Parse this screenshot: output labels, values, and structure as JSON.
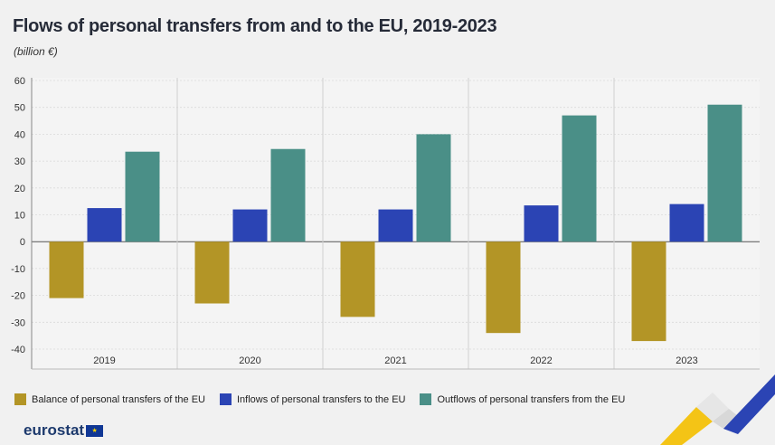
{
  "header": {
    "title": "Flows of personal transfers from and to the EU, 2019-2023",
    "subtitle": "(billion €)"
  },
  "chart_data": {
    "type": "bar",
    "title": "Flows of personal transfers from and to the EU, 2019-2023",
    "ylabel": "billion €",
    "xlabel": "",
    "ylim": [
      -45,
      60
    ],
    "yticks": [
      60,
      50,
      40,
      30,
      20,
      10,
      0,
      -10,
      -20,
      -30,
      -40
    ],
    "categories": [
      "2019",
      "2020",
      "2021",
      "2022",
      "2023"
    ],
    "series": [
      {
        "name": "Balance of personal transfers of the EU",
        "color": "#b39526",
        "values": [
          -21,
          -23,
          -28,
          -34,
          -37
        ]
      },
      {
        "name": "Inflows of personal transfers to the EU",
        "color": "#2b44b4",
        "values": [
          12.5,
          12,
          12,
          13.5,
          14
        ]
      },
      {
        "name": "Outflows of personal transfers from the EU",
        "color": "#4a8f87",
        "values": [
          33.5,
          34.5,
          40,
          47,
          51
        ]
      }
    ],
    "grid": true,
    "legend": "bottom"
  },
  "legend": {
    "items": [
      {
        "label": "Balance of personal transfers of the EU",
        "color": "#b39526"
      },
      {
        "label": "Inflows of personal transfers to the EU",
        "color": "#2b44b4"
      },
      {
        "label": "Outflows of personal transfers from the EU",
        "color": "#4a8f87"
      }
    ]
  },
  "footer": {
    "brand": "eurostat",
    "flag_stars": "★"
  }
}
